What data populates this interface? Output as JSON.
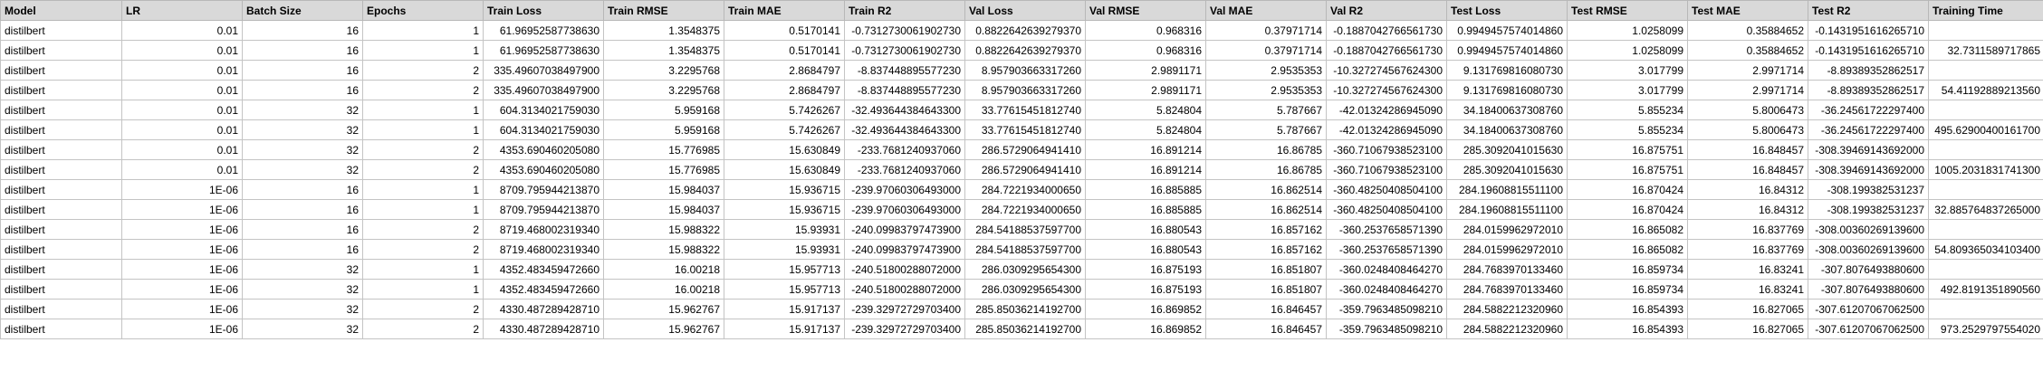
{
  "columns": [
    "Model",
    "LR",
    "Batch Size",
    "Epochs",
    "Train Loss",
    "Train RMSE",
    "Train MAE",
    "Train R2",
    "Val Loss",
    "Val RMSE",
    "Val MAE",
    "Val R2",
    "Test Loss",
    "Test RMSE",
    "Test MAE",
    "Test R2",
    "Training Time"
  ],
  "rows": [
    [
      "distilbert",
      "0.01",
      "16",
      "1",
      "61.96952587738630",
      "1.3548375",
      "0.5170141",
      "-0.7312730061902730",
      "0.8822642639279370",
      "0.968316",
      "0.37971714",
      "-0.1887042766561730",
      "0.9949457574014860",
      "1.0258099",
      "0.35884652",
      "-0.1431951616265710",
      ""
    ],
    [
      "distilbert",
      "0.01",
      "16",
      "1",
      "61.96952587738630",
      "1.3548375",
      "0.5170141",
      "-0.7312730061902730",
      "0.8822642639279370",
      "0.968316",
      "0.37971714",
      "-0.1887042766561730",
      "0.9949457574014860",
      "1.0258099",
      "0.35884652",
      "-0.1431951616265710",
      "32.7311589717865"
    ],
    [
      "distilbert",
      "0.01",
      "16",
      "2",
      "335.49607038497900",
      "3.2295768",
      "2.8684797",
      "-8.837448895577230",
      "8.957903663317260",
      "2.9891171",
      "2.9535353",
      "-10.327274567624300",
      "9.131769816080730",
      "3.017799",
      "2.9971714",
      "-8.89389352862517",
      ""
    ],
    [
      "distilbert",
      "0.01",
      "16",
      "2",
      "335.49607038497900",
      "3.2295768",
      "2.8684797",
      "-8.837448895577230",
      "8.957903663317260",
      "2.9891171",
      "2.9535353",
      "-10.327274567624300",
      "9.131769816080730",
      "3.017799",
      "2.9971714",
      "-8.89389352862517",
      "54.41192889213560"
    ],
    [
      "distilbert",
      "0.01",
      "32",
      "1",
      "604.3134021759030",
      "5.959168",
      "5.7426267",
      "-32.493644384643300",
      "33.77615451812740",
      "5.824804",
      "5.787667",
      "-42.01324286945090",
      "34.18400637308760",
      "5.855234",
      "5.8006473",
      "-36.24561722297400",
      ""
    ],
    [
      "distilbert",
      "0.01",
      "32",
      "1",
      "604.3134021759030",
      "5.959168",
      "5.7426267",
      "-32.493644384643300",
      "33.77615451812740",
      "5.824804",
      "5.787667",
      "-42.01324286945090",
      "34.18400637308760",
      "5.855234",
      "5.8006473",
      "-36.24561722297400",
      "495.62900400161700"
    ],
    [
      "distilbert",
      "0.01",
      "32",
      "2",
      "4353.690460205080",
      "15.776985",
      "15.630849",
      "-233.7681240937060",
      "286.5729064941410",
      "16.891214",
      "16.86785",
      "-360.71067938523100",
      "285.3092041015630",
      "16.875751",
      "16.848457",
      "-308.39469143692000",
      ""
    ],
    [
      "distilbert",
      "0.01",
      "32",
      "2",
      "4353.690460205080",
      "15.776985",
      "15.630849",
      "-233.7681240937060",
      "286.5729064941410",
      "16.891214",
      "16.86785",
      "-360.71067938523100",
      "285.3092041015630",
      "16.875751",
      "16.848457",
      "-308.39469143692000",
      "1005.2031831741300"
    ],
    [
      "distilbert",
      "1E-06",
      "16",
      "1",
      "8709.795944213870",
      "15.984037",
      "15.936715",
      "-239.97060306493000",
      "284.7221934000650",
      "16.885885",
      "16.862514",
      "-360.48250408504100",
      "284.19608815511100",
      "16.870424",
      "16.84312",
      "-308.199382531237",
      ""
    ],
    [
      "distilbert",
      "1E-06",
      "16",
      "1",
      "8709.795944213870",
      "15.984037",
      "15.936715",
      "-239.97060306493000",
      "284.7221934000650",
      "16.885885",
      "16.862514",
      "-360.48250408504100",
      "284.19608815511100",
      "16.870424",
      "16.84312",
      "-308.199382531237",
      "32.885764837265000"
    ],
    [
      "distilbert",
      "1E-06",
      "16",
      "2",
      "8719.468002319340",
      "15.988322",
      "15.93931",
      "-240.09983797473900",
      "284.54188537597700",
      "16.880543",
      "16.857162",
      "-360.2537658571390",
      "284.0159962972010",
      "16.865082",
      "16.837769",
      "-308.00360269139600",
      ""
    ],
    [
      "distilbert",
      "1E-06",
      "16",
      "2",
      "8719.468002319340",
      "15.988322",
      "15.93931",
      "-240.09983797473900",
      "284.54188537597700",
      "16.880543",
      "16.857162",
      "-360.2537658571390",
      "284.0159962972010",
      "16.865082",
      "16.837769",
      "-308.00360269139600",
      "54.809365034103400"
    ],
    [
      "distilbert",
      "1E-06",
      "32",
      "1",
      "4352.483459472660",
      "16.00218",
      "15.957713",
      "-240.51800288072000",
      "286.0309295654300",
      "16.875193",
      "16.851807",
      "-360.0248408464270",
      "284.7683970133460",
      "16.859734",
      "16.83241",
      "-307.8076493880600",
      ""
    ],
    [
      "distilbert",
      "1E-06",
      "32",
      "1",
      "4352.483459472660",
      "16.00218",
      "15.957713",
      "-240.51800288072000",
      "286.0309295654300",
      "16.875193",
      "16.851807",
      "-360.0248408464270",
      "284.7683970133460",
      "16.859734",
      "16.83241",
      "-307.8076493880600",
      "492.8191351890560"
    ],
    [
      "distilbert",
      "1E-06",
      "32",
      "2",
      "4330.487289428710",
      "15.962767",
      "15.917137",
      "-239.32972729703400",
      "285.85036214192700",
      "16.869852",
      "16.846457",
      "-359.7963485098210",
      "284.5882212320960",
      "16.854393",
      "16.827065",
      "-307.61207067062500",
      ""
    ],
    [
      "distilbert",
      "1E-06",
      "32",
      "2",
      "4330.487289428710",
      "15.962767",
      "15.917137",
      "-239.32972729703400",
      "285.85036214192700",
      "16.869852",
      "16.846457",
      "-359.7963485098210",
      "284.5882212320960",
      "16.854393",
      "16.827065",
      "-307.61207067062500",
      "973.2529797554020"
    ]
  ]
}
